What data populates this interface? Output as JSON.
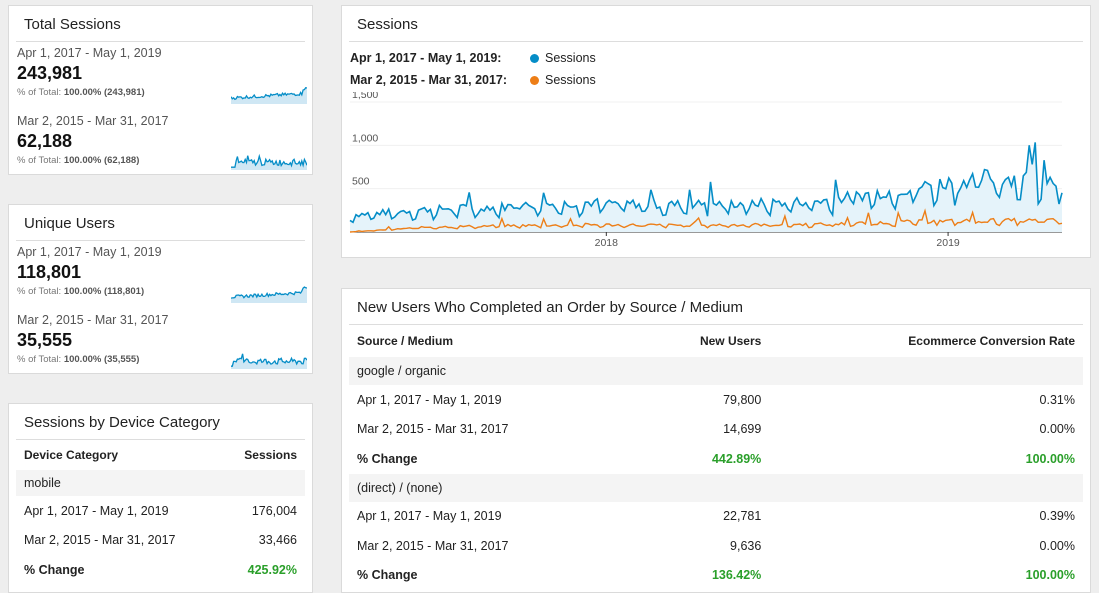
{
  "total_sessions": {
    "title": "Total Sessions",
    "primary": {
      "range": "Apr 1, 2017 - May 1, 2019",
      "value": "243,981",
      "pct_prefix": "% of Total:",
      "pct_value": "100.00% (243,981)"
    },
    "compare": {
      "range": "Mar 2, 2015 - Mar 31, 2017",
      "value": "62,188",
      "pct_prefix": "% of Total:",
      "pct_value": "100.00% (62,188)"
    }
  },
  "unique_users": {
    "title": "Unique Users",
    "primary": {
      "range": "Apr 1, 2017 - May 1, 2019",
      "value": "118,801",
      "pct_prefix": "% of Total:",
      "pct_value": "100.00% (118,801)"
    },
    "compare": {
      "range": "Mar 2, 2015 - Mar 31, 2017",
      "value": "35,555",
      "pct_prefix": "% of Total:",
      "pct_value": "100.00% (35,555)"
    }
  },
  "device": {
    "title": "Sessions by Device Category",
    "headers": [
      "Device Category",
      "Sessions"
    ],
    "group": "mobile",
    "rows": [
      {
        "label": "Apr 1, 2017 - May 1, 2019",
        "value": "176,004"
      },
      {
        "label": "Mar 2, 2015 - Mar 31, 2017",
        "value": "33,466"
      },
      {
        "label": "% Change",
        "value": "425.92%"
      }
    ]
  },
  "sessions_chart": {
    "title": "Sessions",
    "legend": [
      {
        "range": "Apr 1, 2017 - May 1, 2019:",
        "series": "Sessions",
        "color": "#058dc7"
      },
      {
        "range": "Mar 2, 2015 - Mar 31, 2017:",
        "series": "Sessions",
        "color": "#ed7e17"
      }
    ]
  },
  "chart_data": {
    "type": "line",
    "title": "Sessions",
    "y_ticks": [
      "1,500",
      "1,000",
      "500"
    ],
    "x_ticks": [
      "2018",
      "2019"
    ],
    "ylim": [
      0,
      1500
    ],
    "x_range": [
      "2017-04-01",
      "2019-05-01"
    ],
    "series": [
      {
        "name": "Sessions",
        "color": "#058dc7",
        "range": "Apr 1, 2017 - May 1, 2019",
        "x": [
          "2017-04",
          "2017-07",
          "2017-10",
          "2018-01",
          "2018-04",
          "2018-07",
          "2018-10",
          "2019-01",
          "2019-04",
          "2019-05"
        ],
        "values": [
          180,
          240,
          270,
          310,
          290,
          300,
          330,
          450,
          580,
          550
        ]
      },
      {
        "name": "Sessions",
        "color": "#ed7e17",
        "range": "Mar 2, 2015 - Mar 31, 2017",
        "x": [
          "2017-04",
          "2017-07",
          "2017-10",
          "2018-01",
          "2018-04",
          "2018-07",
          "2018-10",
          "2019-01",
          "2019-04",
          "2019-05"
        ],
        "values": [
          0,
          55,
          70,
          80,
          75,
          80,
          85,
          110,
          125,
          125
        ]
      }
    ]
  },
  "source_table": {
    "title": "New Users Who Completed an Order by Source / Medium",
    "headers": [
      "Source / Medium",
      "New Users",
      "Ecommerce Conversion Rate"
    ],
    "groups": [
      {
        "name": "google / organic",
        "rows": [
          {
            "label": "Apr 1, 2017 - May 1, 2019",
            "new_users": "79,800",
            "rate": "0.31%"
          },
          {
            "label": "Mar 2, 2015 - Mar 31, 2017",
            "new_users": "14,699",
            "rate": "0.00%"
          },
          {
            "label": "% Change",
            "new_users": "442.89%",
            "rate": "100.00%"
          }
        ]
      },
      {
        "name": "(direct) / (none)",
        "rows": [
          {
            "label": "Apr 1, 2017 - May 1, 2019",
            "new_users": "22,781",
            "rate": "0.39%"
          },
          {
            "label": "Mar 2, 2015 - Mar 31, 2017",
            "new_users": "9,636",
            "rate": "0.00%"
          },
          {
            "label": "% Change",
            "new_users": "136.42%",
            "rate": "100.00%"
          }
        ]
      }
    ]
  }
}
